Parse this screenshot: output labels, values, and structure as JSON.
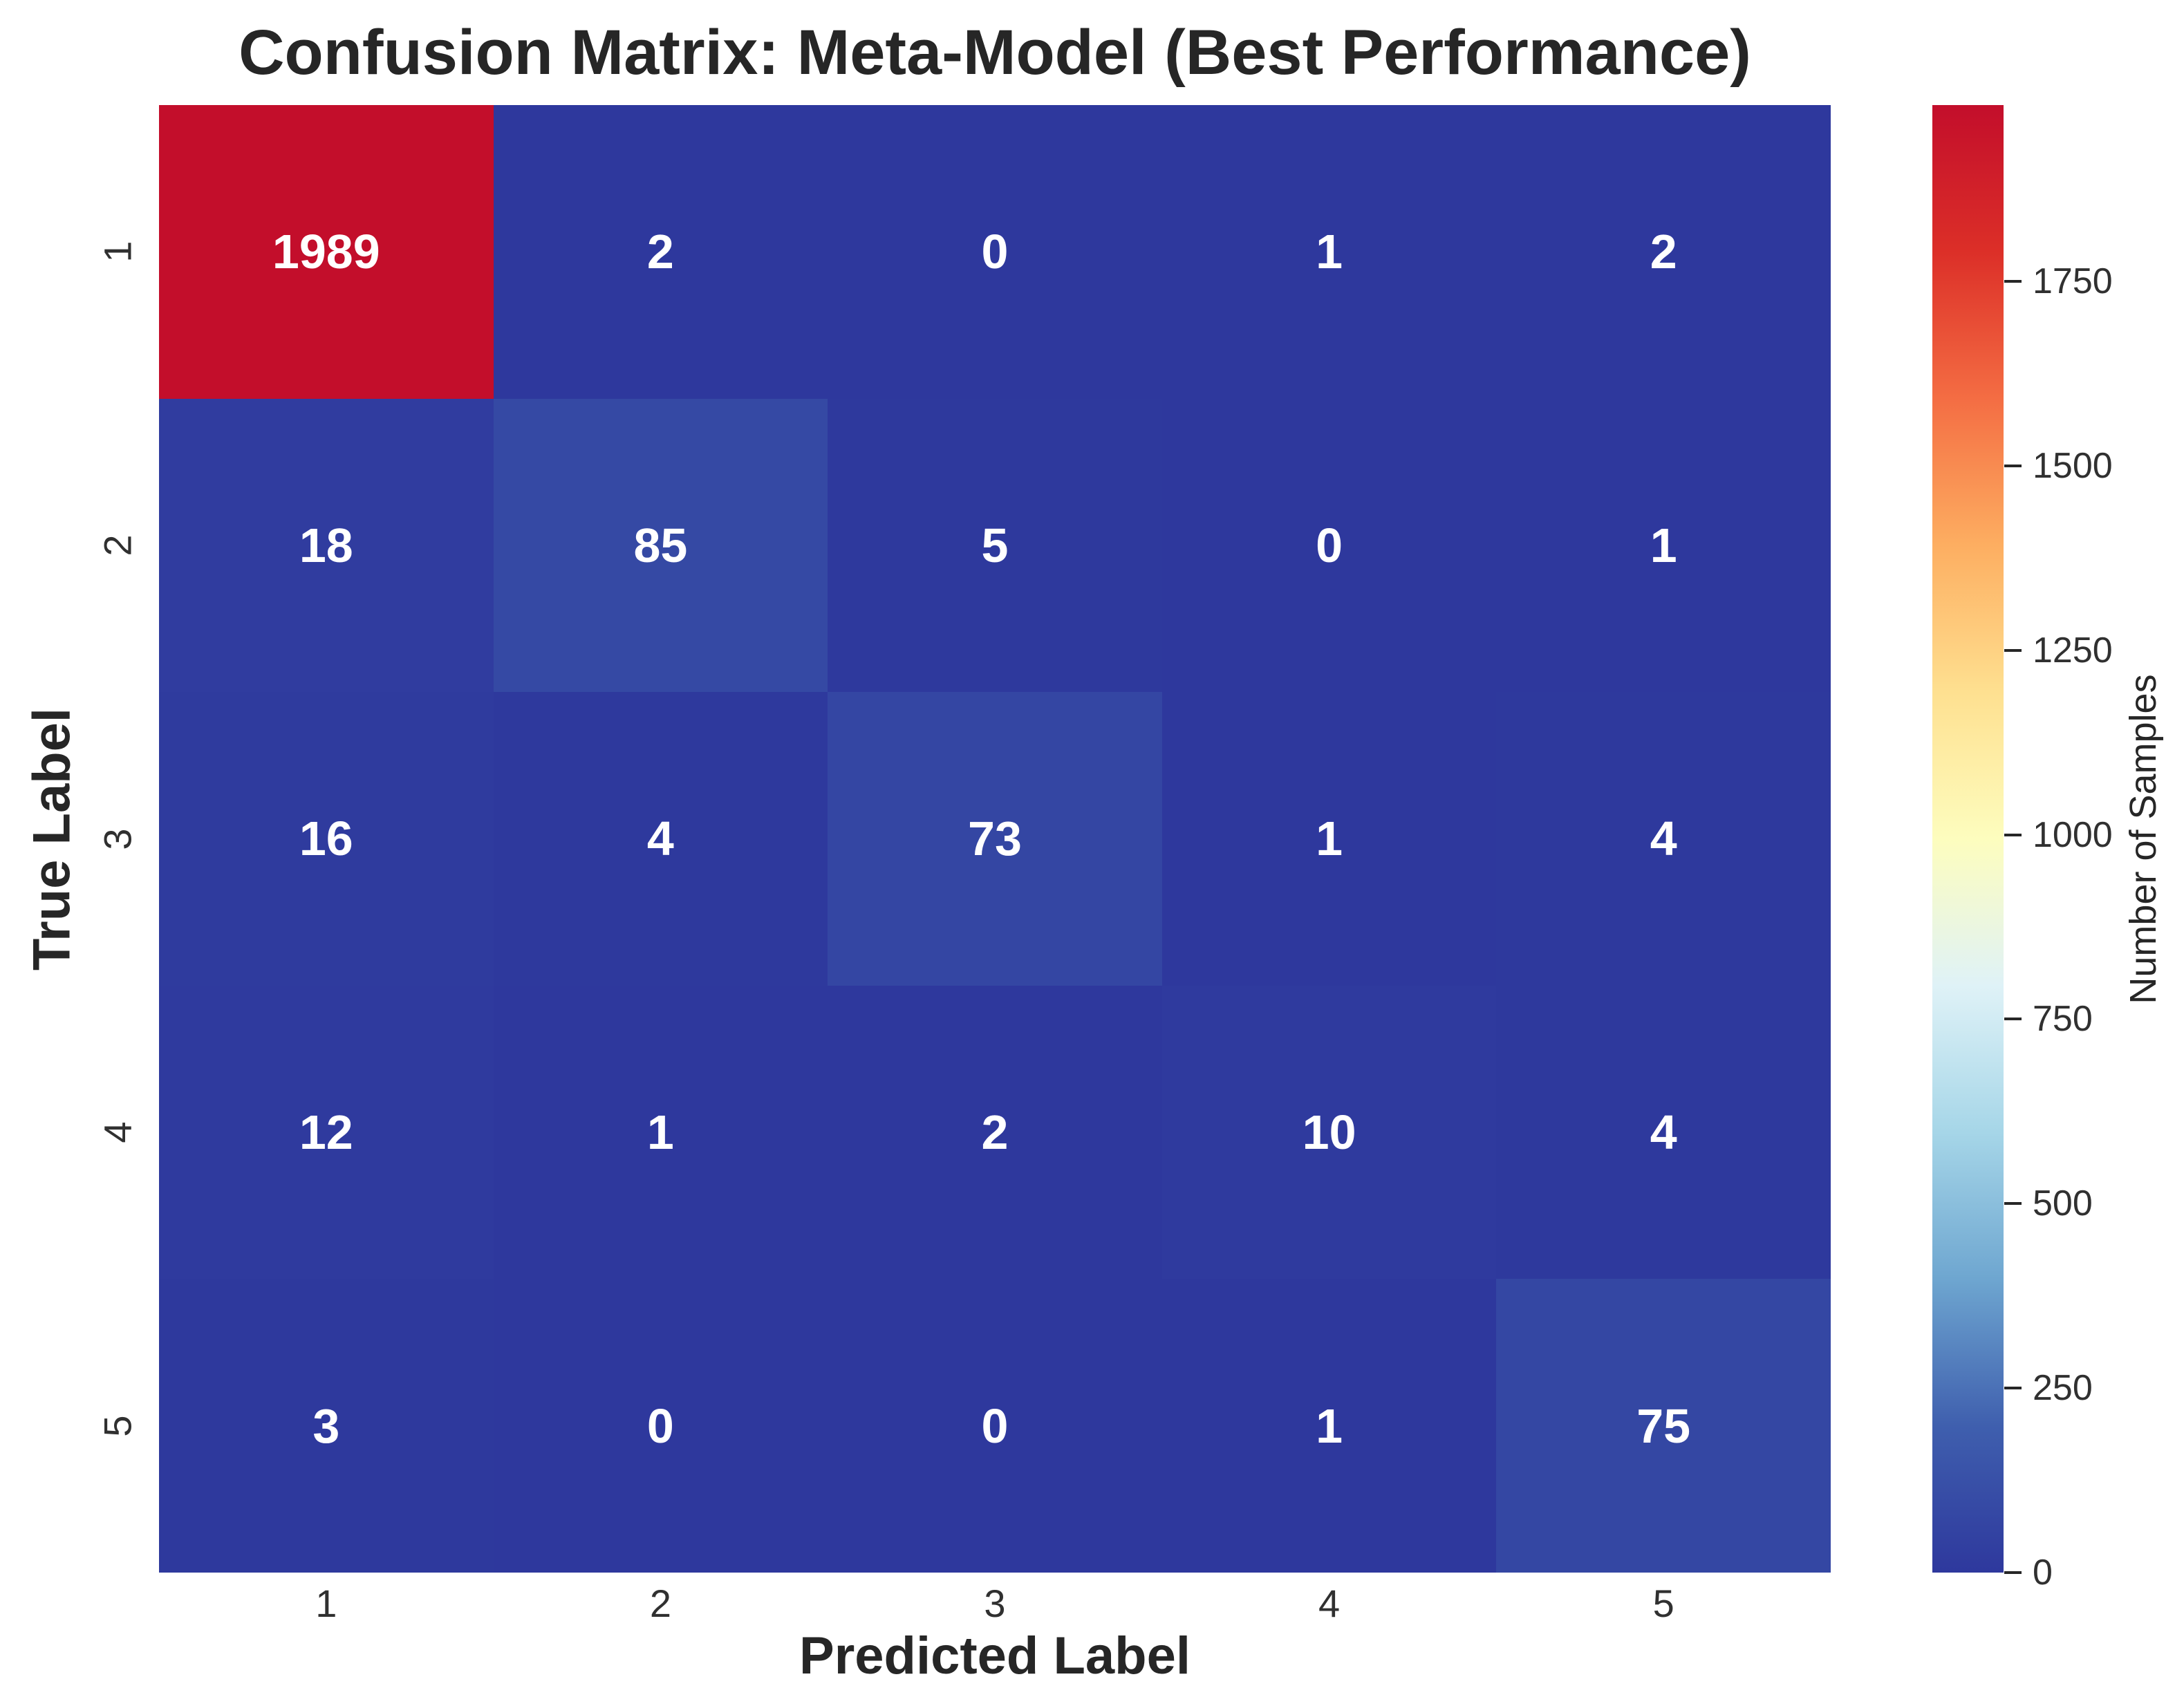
{
  "chart_data": {
    "type": "heatmap",
    "title": "Confusion Matrix: Meta-Model (Best Performance)",
    "xlabel": "Predicted Label",
    "ylabel": "True Label",
    "x_ticklabels": [
      "1",
      "2",
      "3",
      "4",
      "5"
    ],
    "y_ticklabels": [
      "1",
      "2",
      "3",
      "4",
      "5"
    ],
    "matrix": [
      [
        1989,
        2,
        0,
        1,
        2
      ],
      [
        18,
        85,
        5,
        0,
        1
      ],
      [
        16,
        4,
        73,
        1,
        4
      ],
      [
        12,
        1,
        2,
        10,
        4
      ],
      [
        3,
        0,
        0,
        1,
        75
      ]
    ],
    "vmin": 0,
    "vmax": 1989,
    "annotation_color": "#ffffff",
    "grid": false,
    "colorbar": {
      "label": "Number of Samples",
      "ticks": [
        0,
        250,
        500,
        750,
        1000,
        1250,
        1500,
        1750
      ],
      "colormap_name": "RdYlBu_r",
      "colormap_stops": [
        {
          "pos": 0.0,
          "color": "#2e389d"
        },
        {
          "pos": 0.1,
          "color": "#3f5fae"
        },
        {
          "pos": 0.2,
          "color": "#6ea6d0"
        },
        {
          "pos": 0.3,
          "color": "#a6d6e8"
        },
        {
          "pos": 0.4,
          "color": "#dff2f7"
        },
        {
          "pos": 0.5,
          "color": "#fdfdbe"
        },
        {
          "pos": 0.6,
          "color": "#fee090"
        },
        {
          "pos": 0.7,
          "color": "#fdae61"
        },
        {
          "pos": 0.8,
          "color": "#f46d43"
        },
        {
          "pos": 0.9,
          "color": "#dc2f28"
        },
        {
          "pos": 1.0,
          "color": "#c30e2b"
        }
      ]
    },
    "colors": {
      "title_text": "#262626",
      "tick_text": "#303030",
      "background": "#ffffff"
    }
  }
}
